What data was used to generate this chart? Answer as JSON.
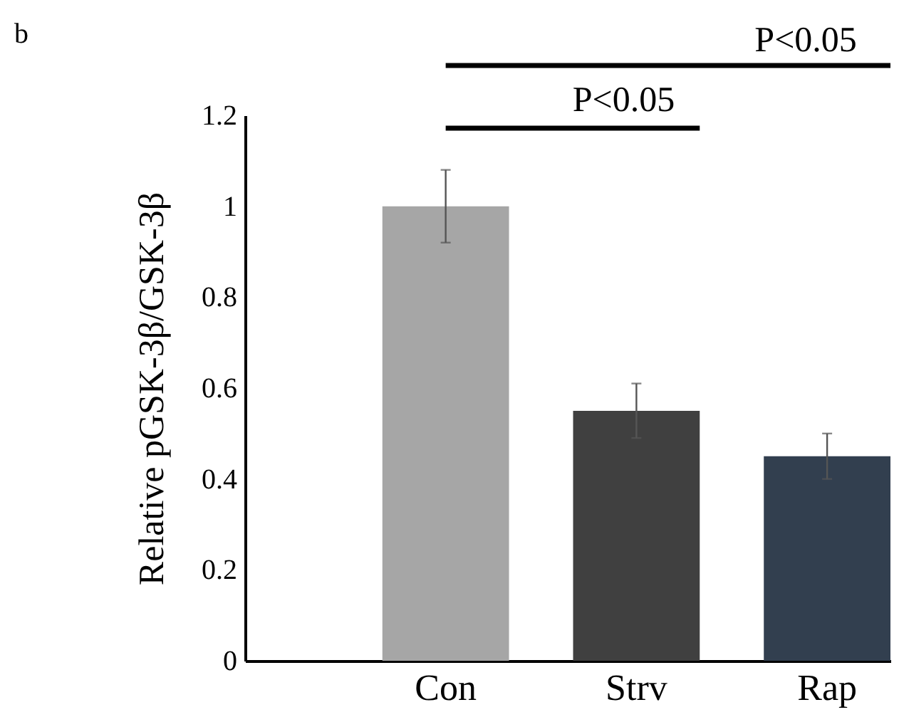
{
  "chart_data": {
    "type": "bar",
    "ylabel": "Relative pGSK-3β/GSK-3β",
    "categories": [
      "Con",
      "Strv",
      "Rap"
    ],
    "values": [
      1.0,
      0.55,
      0.45
    ],
    "colors": [
      "#a6a6a6",
      "#404040",
      "#323f4f"
    ],
    "errors": [
      [
        0.92,
        1.08
      ],
      [
        0.49,
        0.61
      ],
      [
        0.4,
        0.5
      ]
    ],
    "ylim": [
      0,
      1.2
    ],
    "yticks": [
      0,
      0.2,
      0.4,
      0.6,
      0.8,
      1,
      1.2
    ],
    "grid": false,
    "legend": false,
    "annotations": [
      "b",
      "P<0.05",
      "P<0.05"
    ]
  }
}
